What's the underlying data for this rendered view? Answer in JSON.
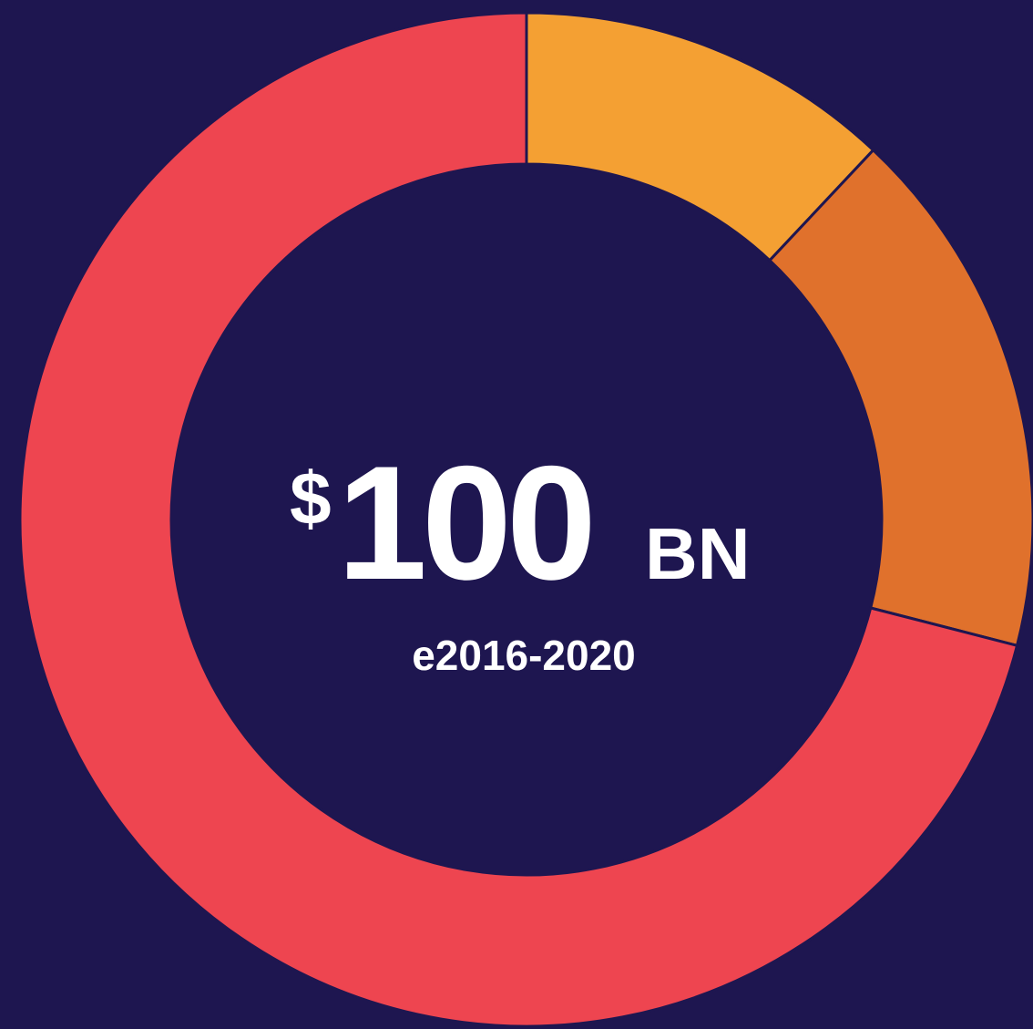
{
  "chart_data": {
    "type": "donut",
    "categories": [
      null,
      null,
      null
    ],
    "values": [
      12,
      17,
      71
    ],
    "colors": [
      "#f4a033",
      "#e0712c",
      "#ee4550"
    ],
    "annotations": [
      "$",
      "100",
      "BN",
      "e2016-2020"
    ]
  }
}
